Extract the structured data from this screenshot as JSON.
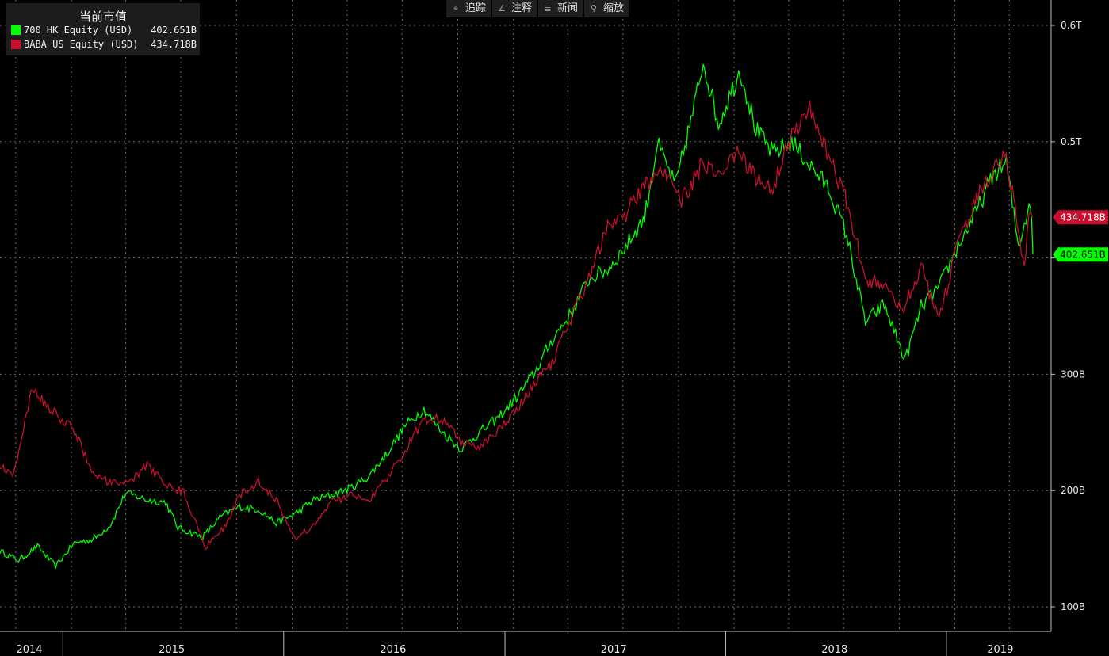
{
  "toolbar": {
    "buttons": [
      {
        "label": "追踪",
        "icon": "crosshair-icon"
      },
      {
        "label": "注释",
        "icon": "pencil-icon"
      },
      {
        "label": "新闻",
        "icon": "news-icon"
      },
      {
        "label": "缩放",
        "icon": "magnifier-icon"
      }
    ]
  },
  "legend": {
    "title": "当前市值",
    "items": [
      {
        "name": "700 HK Equity (USD)",
        "value": "402.651B",
        "color": "#00ff00"
      },
      {
        "name": "BABA US Equity (USD)",
        "value": "434.718B",
        "color": "#c8102e"
      }
    ]
  },
  "chart_data": {
    "type": "line",
    "title": "当前市值",
    "x_range": [
      "2014-09-19",
      "2019-05-24"
    ],
    "ylim": [
      92,
      612
    ],
    "y_unit": "B USD",
    "y_ticks": [
      {
        "value": 100,
        "label": "100B"
      },
      {
        "value": 200,
        "label": "200B"
      },
      {
        "value": 300,
        "label": "300B"
      },
      {
        "value": 400,
        "label": ""
      },
      {
        "value": 500,
        "label": "0.5T"
      },
      {
        "value": 600,
        "label": "0.6T"
      }
    ],
    "x_ticks": [
      {
        "date": "2014-09-19",
        "label": "2014"
      },
      {
        "date": "2015-06-30",
        "label": "2015"
      },
      {
        "date": "2016-06-30",
        "label": "2016"
      },
      {
        "date": "2017-06-30",
        "label": "2017"
      },
      {
        "date": "2018-06-30",
        "label": "2018"
      },
      {
        "date": "2019-03-31",
        "label": "2019"
      }
    ],
    "grid": true,
    "legend_position": "top-left",
    "series": [
      {
        "name": "700 HK Equity (USD)",
        "color": "#00ff00",
        "last_value_label": "402.651B",
        "points": [
          [
            "2014-09-19",
            148
          ],
          [
            "2014-10-20",
            140
          ],
          [
            "2014-11-20",
            152
          ],
          [
            "2014-12-20",
            135
          ],
          [
            "2015-01-20",
            155
          ],
          [
            "2015-02-20",
            158
          ],
          [
            "2015-03-20",
            170
          ],
          [
            "2015-04-15",
            198
          ],
          [
            "2015-05-20",
            192
          ],
          [
            "2015-06-20",
            190
          ],
          [
            "2015-07-10",
            168
          ],
          [
            "2015-08-20",
            160
          ],
          [
            "2015-09-20",
            178
          ],
          [
            "2015-10-20",
            186
          ],
          [
            "2015-11-20",
            184
          ],
          [
            "2015-12-20",
            172
          ],
          [
            "2016-01-20",
            180
          ],
          [
            "2016-02-20",
            192
          ],
          [
            "2016-03-20",
            196
          ],
          [
            "2016-04-20",
            202
          ],
          [
            "2016-05-20",
            212
          ],
          [
            "2016-06-20",
            232
          ],
          [
            "2016-07-20",
            256
          ],
          [
            "2016-08-20",
            270
          ],
          [
            "2016-09-20",
            250
          ],
          [
            "2016-10-20",
            236
          ],
          [
            "2016-11-20",
            250
          ],
          [
            "2016-12-20",
            262
          ],
          [
            "2017-01-20",
            280
          ],
          [
            "2017-02-20",
            302
          ],
          [
            "2017-03-20",
            330
          ],
          [
            "2017-04-20",
            352
          ],
          [
            "2017-05-20",
            382
          ],
          [
            "2017-06-20",
            390
          ],
          [
            "2017-07-20",
            410
          ],
          [
            "2017-08-20",
            435
          ],
          [
            "2017-09-10",
            498
          ],
          [
            "2017-10-10",
            462
          ],
          [
            "2017-11-10",
            530
          ],
          [
            "2017-11-25",
            570
          ],
          [
            "2017-12-20",
            515
          ],
          [
            "2018-01-25",
            562
          ],
          [
            "2018-02-20",
            510
          ],
          [
            "2018-03-20",
            490
          ],
          [
            "2018-04-20",
            500
          ],
          [
            "2018-05-20",
            480
          ],
          [
            "2018-06-20",
            460
          ],
          [
            "2018-07-20",
            420
          ],
          [
            "2018-08-20",
            345
          ],
          [
            "2018-09-20",
            360
          ],
          [
            "2018-10-25",
            312
          ],
          [
            "2018-11-20",
            358
          ],
          [
            "2018-12-20",
            375
          ],
          [
            "2019-01-20",
            410
          ],
          [
            "2019-02-20",
            440
          ],
          [
            "2019-03-20",
            472
          ],
          [
            "2019-04-10",
            482
          ],
          [
            "2019-04-30",
            410
          ],
          [
            "2019-05-10",
            430
          ],
          [
            "2019-05-20",
            450
          ],
          [
            "2019-05-24",
            403
          ]
        ]
      },
      {
        "name": "BABA US Equity (USD)",
        "color": "#c8102e",
        "last_value_label": "434.718B",
        "points": [
          [
            "2014-09-19",
            222
          ],
          [
            "2014-10-10",
            212
          ],
          [
            "2014-11-12",
            288
          ],
          [
            "2014-12-10",
            270
          ],
          [
            "2015-01-20",
            252
          ],
          [
            "2015-02-20",
            215
          ],
          [
            "2015-03-20",
            206
          ],
          [
            "2015-04-20",
            206
          ],
          [
            "2015-05-20",
            222
          ],
          [
            "2015-06-20",
            206
          ],
          [
            "2015-07-20",
            198
          ],
          [
            "2015-08-25",
            152
          ],
          [
            "2015-09-25",
            168
          ],
          [
            "2015-10-20",
            196
          ],
          [
            "2015-11-20",
            208
          ],
          [
            "2015-12-20",
            192
          ],
          [
            "2016-01-20",
            158
          ],
          [
            "2016-02-20",
            170
          ],
          [
            "2016-03-20",
            190
          ],
          [
            "2016-04-20",
            196
          ],
          [
            "2016-05-20",
            192
          ],
          [
            "2016-06-20",
            210
          ],
          [
            "2016-07-20",
            235
          ],
          [
            "2016-08-20",
            262
          ],
          [
            "2016-09-20",
            262
          ],
          [
            "2016-10-20",
            242
          ],
          [
            "2016-11-20",
            238
          ],
          [
            "2016-12-20",
            252
          ],
          [
            "2017-01-20",
            268
          ],
          [
            "2017-02-20",
            292
          ],
          [
            "2017-03-20",
            310
          ],
          [
            "2017-04-20",
            348
          ],
          [
            "2017-05-20",
            385
          ],
          [
            "2017-06-20",
            428
          ],
          [
            "2017-07-20",
            438
          ],
          [
            "2017-08-20",
            462
          ],
          [
            "2017-09-20",
            474
          ],
          [
            "2017-10-20",
            448
          ],
          [
            "2017-11-20",
            478
          ],
          [
            "2017-12-20",
            470
          ],
          [
            "2018-01-20",
            492
          ],
          [
            "2018-02-20",
            468
          ],
          [
            "2018-03-20",
            462
          ],
          [
            "2018-04-20",
            505
          ],
          [
            "2018-05-20",
            528
          ],
          [
            "2018-06-20",
            488
          ],
          [
            "2018-07-20",
            448
          ],
          [
            "2018-08-20",
            382
          ],
          [
            "2018-09-20",
            378
          ],
          [
            "2018-10-20",
            355
          ],
          [
            "2018-11-20",
            392
          ],
          [
            "2018-12-20",
            345
          ],
          [
            "2019-01-20",
            415
          ],
          [
            "2019-02-20",
            450
          ],
          [
            "2019-03-20",
            475
          ],
          [
            "2019-04-10",
            490
          ],
          [
            "2019-04-30",
            420
          ],
          [
            "2019-05-10",
            392
          ],
          [
            "2019-05-20",
            446
          ],
          [
            "2019-05-24",
            435
          ]
        ]
      }
    ]
  }
}
